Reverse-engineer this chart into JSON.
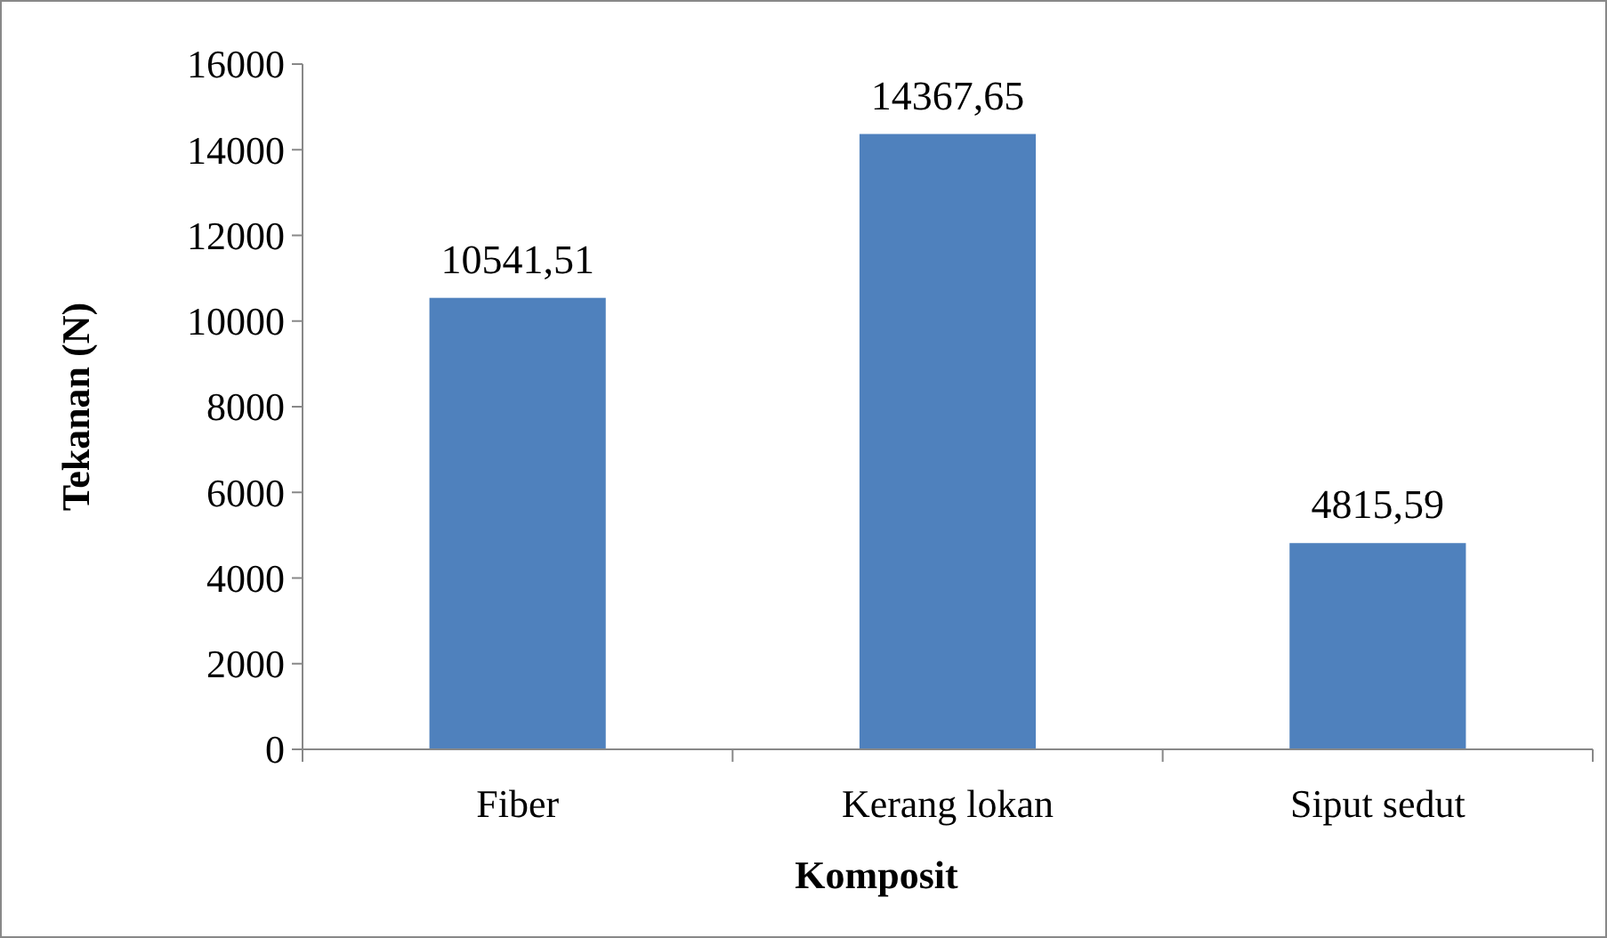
{
  "chart_data": {
    "type": "bar",
    "xlabel": "Komposit",
    "ylabel": "Tekanan (N)",
    "categories": [
      "Fiber",
      "Kerang lokan",
      "Siput sedut"
    ],
    "values": [
      10541.51,
      14367.65,
      4815.59
    ],
    "value_labels": [
      "10541,51",
      "14367,65",
      "4815,59"
    ],
    "color": "#4f81bd",
    "ylim": [
      0,
      16000
    ],
    "yticks": [
      0,
      2000,
      4000,
      6000,
      8000,
      10000,
      12000,
      14000,
      16000
    ]
  }
}
